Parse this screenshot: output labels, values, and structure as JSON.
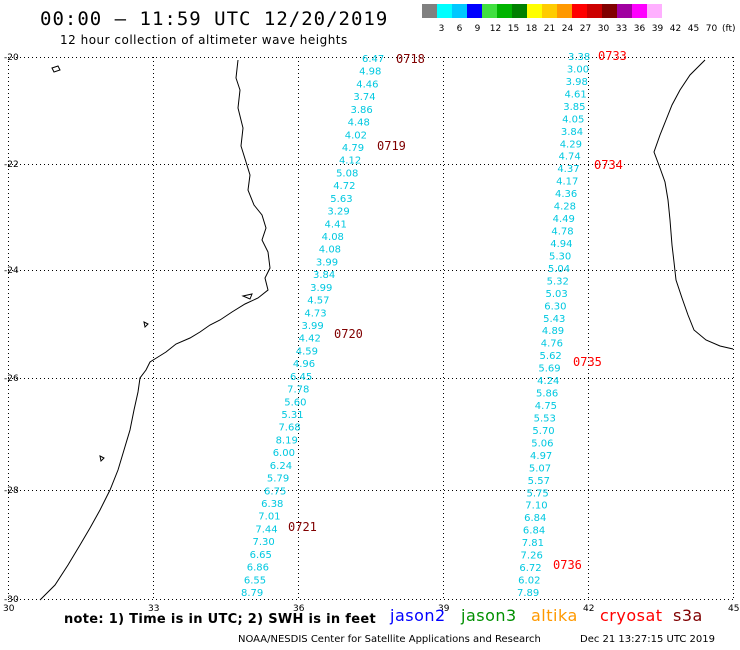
{
  "header": {
    "title": "00:00 – 11:59 UTC 12/20/2019",
    "subtitle": "12 hour collection of altimeter wave heights"
  },
  "color_scale": {
    "labels": [
      "3",
      "6",
      "9",
      "12",
      "15",
      "18",
      "21",
      "24",
      "27",
      "30",
      "33",
      "36",
      "39",
      "42",
      "45",
      "70"
    ],
    "unit": "(ft)",
    "colors": [
      "#808080",
      "#00ffff",
      "#00c8ff",
      "#0000ff",
      "#40e040",
      "#00b400",
      "#008000",
      "#ffff00",
      "#ffcc00",
      "#ff9900",
      "#ff0000",
      "#cc0000",
      "#800000",
      "#a000a0",
      "#ff00ff",
      "#ffb0ff"
    ]
  },
  "map": {
    "lon_labels": [
      "30",
      "33",
      "36",
      "39",
      "42",
      "45"
    ],
    "lat_labels": [
      "-20",
      "-22",
      "-24",
      "-26",
      "-28",
      "-30"
    ],
    "track1": {
      "color": "#00c8e0",
      "values": [
        "6.47",
        "4.98",
        "4.46",
        "3.74",
        "3.86",
        "4.48",
        "4.02",
        "4.79",
        "4.12",
        "5.08",
        "4.72",
        "5.63",
        "3.29",
        "4.41",
        "4.08",
        "4.08",
        "3.99",
        "3.84",
        "3.99",
        "4.57",
        "4.73",
        "3.99",
        "4.42",
        "4.59",
        "4.96",
        "6.45",
        "7.78",
        "5.60",
        "5.31",
        "7.68",
        "8.19",
        "6.00",
        "6.24",
        "5.79",
        "6.75",
        "6.38",
        "7.01",
        "7.44",
        "7.30",
        "6.65",
        "6.86",
        "6.55",
        "8.79"
      ],
      "times": [
        "0718",
        "0719",
        "0720",
        "0721"
      ]
    },
    "track2": {
      "color": "#00c8e0",
      "values": [
        "3.38",
        "3.00",
        "3.98",
        "4.61",
        "3.85",
        "4.05",
        "3.84",
        "4.29",
        "4.74",
        "4.37",
        "4.17",
        "4.36",
        "4.28",
        "4.49",
        "4.78",
        "4.94",
        "5.30",
        "5.04",
        "5.32",
        "5.03",
        "6.30",
        "5.43",
        "4.89",
        "4.76",
        "5.62",
        "5.69",
        "4.24",
        "5.86",
        "4.75",
        "5.53",
        "5.70",
        "5.06",
        "4.97",
        "5.07",
        "5.57",
        "5.75",
        "7.10",
        "6.84",
        "6.84",
        "7.81",
        "7.26",
        "6.72",
        "6.02",
        "7.89"
      ],
      "times": [
        "0733",
        "0734",
        "0735",
        "0736"
      ]
    },
    "time_colors": {
      "track1": "#800000",
      "track2": "#ff0000"
    }
  },
  "footer": {
    "note": "note:  1) Time is in UTC;  2) SWH is in feet",
    "missions": [
      {
        "name": "jason2",
        "color": "#0000ff"
      },
      {
        "name": "jason3",
        "color": "#009000"
      },
      {
        "name": "altika",
        "color": "#ff9900"
      },
      {
        "name": "cryosat",
        "color": "#ff0000"
      },
      {
        "name": "s3a",
        "color": "#800000"
      }
    ],
    "agency": "NOAA/NESDIS Center for Satellite Applications and Research",
    "timestamp": "Dec 21 13:27:15 UTC 2019"
  }
}
